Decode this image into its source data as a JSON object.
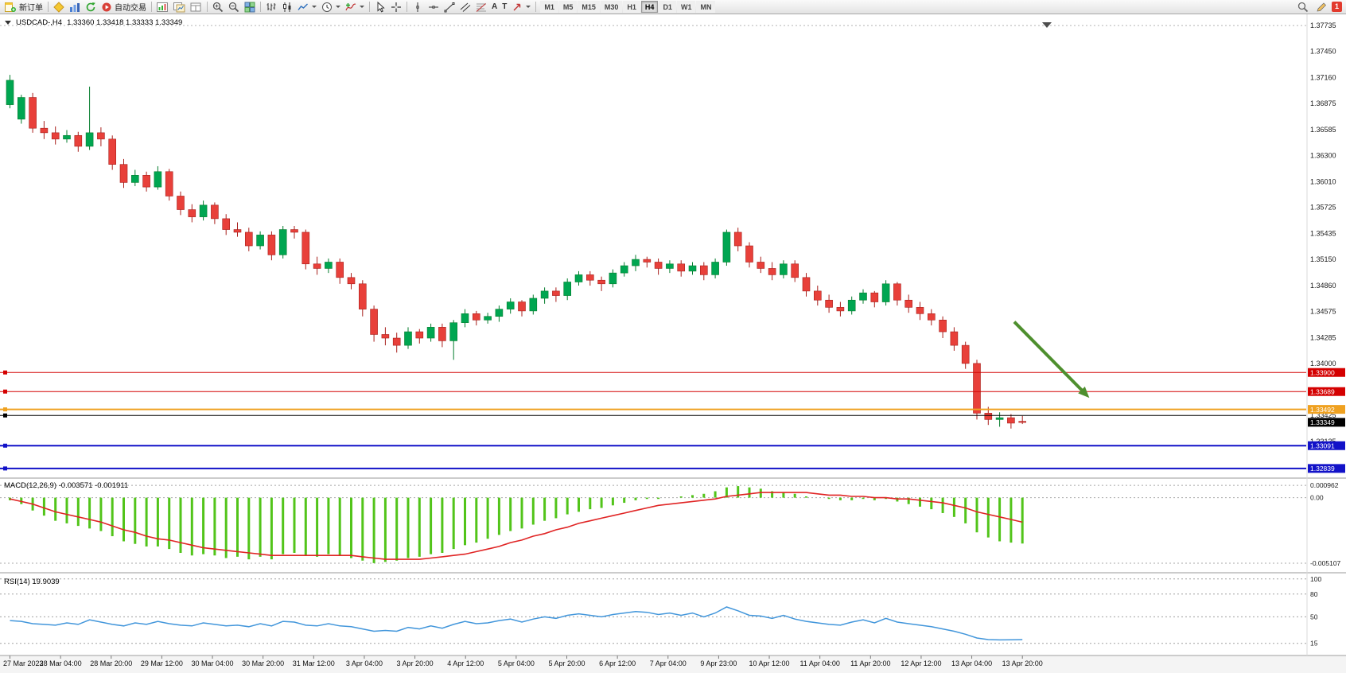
{
  "toolbar": {
    "new_order_label": "新订单",
    "autotrading_label": "自动交易",
    "text_tool_glyph": "A",
    "label_tool_glyph": "T",
    "timeframes": [
      "M1",
      "M5",
      "M15",
      "M30",
      "H1",
      "H4",
      "D1",
      "W1",
      "MN"
    ],
    "active_timeframe": "H4",
    "notification_count": "1"
  },
  "chart_header": {
    "symbol_period": "USDCAD-,H4",
    "ohlc": "1.33360 1.33418 1.33333 1.33349"
  },
  "indicator_labels": {
    "macd": "MACD(12,26,9) -0.003571 -0.001911",
    "rsi": "RSI(14) 19.9039"
  },
  "price_axis": {
    "ticks": [
      "1.37735",
      "1.37450",
      "1.37160",
      "1.36875",
      "1.36585",
      "1.36300",
      "1.36010",
      "1.35725",
      "1.35435",
      "1.35150",
      "1.34860",
      "1.34575",
      "1.34285",
      "1.34000",
      "1.33425",
      "1.33135",
      "1.32850"
    ]
  },
  "time_axis": [
    "27 Mar 2023",
    "28 Mar 04:00",
    "28 Mar 20:00",
    "29 Mar 12:00",
    "30 Mar 04:00",
    "30 Mar 20:00",
    "31 Mar 12:00",
    "3 Apr 04:00",
    "3 Apr 20:00",
    "4 Apr 12:00",
    "5 Apr 04:00",
    "5 Apr 20:00",
    "6 Apr 12:00",
    "7 Apr 04:00",
    "9 Apr 23:00",
    "10 Apr 12:00",
    "11 Apr 04:00",
    "11 Apr 20:00",
    "12 Apr 12:00",
    "13 Apr 04:00",
    "13 Apr 20:00"
  ],
  "colors": {
    "bull": "#00A651",
    "bull_border": "#067D2E",
    "bear": "#E8403A",
    "bear_border": "#A81F1B",
    "macd_histogram": "#52C41A",
    "signal_line": "#E02424",
    "rsi_line": "#4296DB",
    "hline_red": "#D40000",
    "hline_orange": "#EFA120",
    "hline_blue": "#1212C8",
    "hline_black": "#000000",
    "arrow": "#4E8F2E"
  },
  "chart_data": [
    {
      "type": "candlestick",
      "title": "USDCAD H4",
      "ylim": [
        1.3275,
        1.3778
      ],
      "ohlc": [
        [
          1.3686,
          1.3719,
          1.3682,
          1.3713
        ],
        [
          1.367,
          1.3697,
          1.3665,
          1.3694
        ],
        [
          1.3694,
          1.3699,
          1.3655,
          1.366
        ],
        [
          1.366,
          1.3668,
          1.3648,
          1.3655
        ],
        [
          1.3655,
          1.3662,
          1.3642,
          1.3648
        ],
        [
          1.3648,
          1.3658,
          1.3644,
          1.3652
        ],
        [
          1.3652,
          1.3656,
          1.3634,
          1.364
        ],
        [
          1.364,
          1.3706,
          1.3636,
          1.3655
        ],
        [
          1.3655,
          1.3661,
          1.364,
          1.3648
        ],
        [
          1.3648,
          1.3652,
          1.3614,
          1.362
        ],
        [
          1.362,
          1.3626,
          1.3594,
          1.36
        ],
        [
          1.36,
          1.3614,
          1.3596,
          1.3608
        ],
        [
          1.3608,
          1.3612,
          1.359,
          1.3595
        ],
        [
          1.3595,
          1.3618,
          1.3592,
          1.3612
        ],
        [
          1.3612,
          1.3615,
          1.358,
          1.3585
        ],
        [
          1.3585,
          1.359,
          1.3564,
          1.357
        ],
        [
          1.357,
          1.3576,
          1.3556,
          1.3562
        ],
        [
          1.3562,
          1.358,
          1.3558,
          1.3575
        ],
        [
          1.3575,
          1.3578,
          1.3554,
          1.356
        ],
        [
          1.356,
          1.3565,
          1.3542,
          1.3548
        ],
        [
          1.3548,
          1.3556,
          1.354,
          1.3545
        ],
        [
          1.3545,
          1.355,
          1.3524,
          1.353
        ],
        [
          1.353,
          1.3546,
          1.3526,
          1.3542
        ],
        [
          1.3542,
          1.3546,
          1.3514,
          1.352
        ],
        [
          1.352,
          1.3552,
          1.3516,
          1.3548
        ],
        [
          1.3548,
          1.3552,
          1.3538,
          1.3545
        ],
        [
          1.3545,
          1.3548,
          1.3504,
          1.351
        ],
        [
          1.351,
          1.3518,
          1.3498,
          1.3505
        ],
        [
          1.3505,
          1.3516,
          1.35,
          1.3512
        ],
        [
          1.3512,
          1.3516,
          1.3488,
          1.3495
        ],
        [
          1.3495,
          1.35,
          1.3482,
          1.3488
        ],
        [
          1.3488,
          1.3492,
          1.3452,
          1.346
        ],
        [
          1.346,
          1.3464,
          1.3424,
          1.3432
        ],
        [
          1.3432,
          1.344,
          1.342,
          1.3428
        ],
        [
          1.3428,
          1.3434,
          1.3412,
          1.342
        ],
        [
          1.342,
          1.344,
          1.3416,
          1.3435
        ],
        [
          1.3435,
          1.3438,
          1.3422,
          1.3428
        ],
        [
          1.3428,
          1.3444,
          1.3424,
          1.344
        ],
        [
          1.344,
          1.3444,
          1.3418,
          1.3425
        ],
        [
          1.3425,
          1.3448,
          1.3404,
          1.3445
        ],
        [
          1.3445,
          1.346,
          1.344,
          1.3455
        ],
        [
          1.3455,
          1.3458,
          1.3442,
          1.3448
        ],
        [
          1.3448,
          1.3456,
          1.3444,
          1.3452
        ],
        [
          1.3452,
          1.3464,
          1.3446,
          1.346
        ],
        [
          1.346,
          1.3472,
          1.3455,
          1.3468
        ],
        [
          1.3468,
          1.347,
          1.3452,
          1.3458
        ],
        [
          1.3458,
          1.3476,
          1.3454,
          1.3472
        ],
        [
          1.3472,
          1.3484,
          1.3466,
          1.348
        ],
        [
          1.348,
          1.3484,
          1.3468,
          1.3475
        ],
        [
          1.3475,
          1.3494,
          1.347,
          1.349
        ],
        [
          1.349,
          1.3502,
          1.3486,
          1.3498
        ],
        [
          1.3498,
          1.3502,
          1.3486,
          1.3492
        ],
        [
          1.3492,
          1.3496,
          1.348,
          1.3488
        ],
        [
          1.3488,
          1.3504,
          1.3484,
          1.35
        ],
        [
          1.35,
          1.3512,
          1.3496,
          1.3508
        ],
        [
          1.3508,
          1.352,
          1.3502,
          1.3515
        ],
        [
          1.3515,
          1.3518,
          1.3506,
          1.3512
        ],
        [
          1.3512,
          1.3516,
          1.3498,
          1.3505
        ],
        [
          1.3505,
          1.3514,
          1.35,
          1.351
        ],
        [
          1.351,
          1.3514,
          1.3496,
          1.3502
        ],
        [
          1.3502,
          1.3512,
          1.3498,
          1.3508
        ],
        [
          1.3508,
          1.3512,
          1.3492,
          1.3498
        ],
        [
          1.3498,
          1.3516,
          1.3494,
          1.3512
        ],
        [
          1.3512,
          1.3548,
          1.3508,
          1.3545
        ],
        [
          1.3545,
          1.355,
          1.3524,
          1.353
        ],
        [
          1.353,
          1.3534,
          1.3506,
          1.3512
        ],
        [
          1.3512,
          1.3518,
          1.35,
          1.3505
        ],
        [
          1.3505,
          1.3512,
          1.3492,
          1.3498
        ],
        [
          1.3498,
          1.3514,
          1.3494,
          1.351
        ],
        [
          1.351,
          1.3514,
          1.349,
          1.3495
        ],
        [
          1.3495,
          1.35,
          1.3474,
          1.348
        ],
        [
          1.348,
          1.3486,
          1.3464,
          1.347
        ],
        [
          1.347,
          1.3476,
          1.3456,
          1.3462
        ],
        [
          1.3462,
          1.3468,
          1.3452,
          1.3458
        ],
        [
          1.3458,
          1.3474,
          1.3454,
          1.347
        ],
        [
          1.347,
          1.3482,
          1.3466,
          1.3478
        ],
        [
          1.3478,
          1.348,
          1.3462,
          1.3468
        ],
        [
          1.3468,
          1.3492,
          1.3464,
          1.3488
        ],
        [
          1.3488,
          1.349,
          1.3464,
          1.347
        ],
        [
          1.347,
          1.3476,
          1.3456,
          1.3462
        ],
        [
          1.3462,
          1.3468,
          1.3448,
          1.3455
        ],
        [
          1.3455,
          1.346,
          1.3442,
          1.3448
        ],
        [
          1.3448,
          1.3452,
          1.3428,
          1.3435
        ],
        [
          1.3435,
          1.344,
          1.3414,
          1.342
        ],
        [
          1.342,
          1.3424,
          1.3394,
          1.34
        ],
        [
          1.34,
          1.3404,
          1.3338,
          1.3345
        ],
        [
          1.3345,
          1.3352,
          1.3332,
          1.3338
        ],
        [
          1.3338,
          1.3346,
          1.333,
          1.334
        ],
        [
          1.334,
          1.3344,
          1.3328,
          1.3334
        ],
        [
          1.3336,
          1.3342,
          1.3333,
          1.3335
        ]
      ],
      "hlines": [
        {
          "price": 1.339,
          "label": "1.33900",
          "color_key": "hline_red",
          "width": 1
        },
        {
          "price": 1.33689,
          "label": "1.33689",
          "color_key": "hline_red",
          "width": 1
        },
        {
          "price": 1.33492,
          "label": "1.33492",
          "color_key": "hline_orange",
          "width": 2
        },
        {
          "price": 1.33425,
          "label": "",
          "color_key": "hline_black",
          "width": 1
        },
        {
          "price": 1.33091,
          "label": "1.33091",
          "color_key": "hline_blue",
          "width": 2
        },
        {
          "price": 1.32839,
          "label": "1.32839",
          "color_key": "hline_blue",
          "width": 2
        }
      ],
      "current_price": {
        "value": 1.33349,
        "label": "1.33349"
      },
      "arrow": {
        "from_bar": 88.6,
        "from_price": 1.3446,
        "to_bar": 95.2,
        "to_price": 1.3362
      }
    },
    {
      "type": "bar",
      "name": "MACD(12,26,9)",
      "macd_value": -0.003571,
      "signal_value": -0.001911,
      "axis_labels": [
        "0.000962",
        "0.00",
        "-0.005107"
      ],
      "ylim": [
        -0.005107,
        0.000962
      ],
      "values": [
        -0.0002,
        -0.0005,
        -0.001,
        -0.0014,
        -0.0018,
        -0.002,
        -0.0022,
        -0.0024,
        -0.0026,
        -0.003,
        -0.0034,
        -0.0036,
        -0.0038,
        -0.0038,
        -0.004,
        -0.0043,
        -0.0045,
        -0.0044,
        -0.0045,
        -0.0047,
        -0.0046,
        -0.0048,
        -0.0046,
        -0.0048,
        -0.0044,
        -0.0043,
        -0.0045,
        -0.0046,
        -0.0044,
        -0.0045,
        -0.0047,
        -0.0049,
        -0.0051,
        -0.005,
        -0.0049,
        -0.0047,
        -0.0046,
        -0.0044,
        -0.0043,
        -0.004,
        -0.0037,
        -0.0035,
        -0.0032,
        -0.0029,
        -0.0026,
        -0.0024,
        -0.0021,
        -0.0018,
        -0.0016,
        -0.0013,
        -0.0011,
        -0.0009,
        -0.0008,
        -0.0006,
        -0.0004,
        -0.0002,
        -0.0001,
        -0.0001,
        0.0,
        0.0001,
        0.0002,
        0.0003,
        0.0005,
        0.0008,
        0.0009,
        0.0008,
        0.0007,
        0.0005,
        0.0004,
        0.0003,
        0.0001,
        0.0,
        -0.0001,
        -0.0002,
        -0.0002,
        -0.0001,
        -0.0002,
        -0.0001,
        -0.0003,
        -0.0005,
        -0.0007,
        -0.0009,
        -0.0012,
        -0.0015,
        -0.002,
        -0.0027,
        -0.0031,
        -0.0034,
        -0.0035,
        -0.003571
      ],
      "signal": [
        -0.0001,
        -0.0003,
        -0.0005,
        -0.0008,
        -0.0011,
        -0.0013,
        -0.0015,
        -0.0017,
        -0.0019,
        -0.0022,
        -0.0025,
        -0.0027,
        -0.003,
        -0.0032,
        -0.0033,
        -0.0035,
        -0.0037,
        -0.0039,
        -0.004,
        -0.0041,
        -0.0042,
        -0.0043,
        -0.0044,
        -0.0045,
        -0.0045,
        -0.0045,
        -0.0045,
        -0.0045,
        -0.0045,
        -0.0045,
        -0.0045,
        -0.0046,
        -0.0047,
        -0.0048,
        -0.0048,
        -0.0048,
        -0.0048,
        -0.0047,
        -0.0046,
        -0.0045,
        -0.0044,
        -0.0042,
        -0.004,
        -0.0038,
        -0.0035,
        -0.0033,
        -0.003,
        -0.0028,
        -0.0025,
        -0.0023,
        -0.002,
        -0.0018,
        -0.0016,
        -0.0014,
        -0.0012,
        -0.001,
        -0.0008,
        -0.0006,
        -0.0005,
        -0.0004,
        -0.0003,
        -0.0002,
        -0.0001,
        0.0001,
        0.0002,
        0.0003,
        0.0004,
        0.0004,
        0.0004,
        0.0004,
        0.0004,
        0.0003,
        0.0002,
        0.0002,
        0.0001,
        0.0001,
        0.0,
        0.0,
        -0.0001,
        -0.0001,
        -0.0002,
        -0.0003,
        -0.0004,
        -0.0006,
        -0.0008,
        -0.0011,
        -0.0013,
        -0.0015,
        -0.0017,
        -0.001911
      ]
    },
    {
      "type": "line",
      "name": "RSI(14)",
      "current": 19.9039,
      "levels": [
        100,
        80,
        50,
        15
      ],
      "axis_labels": [
        "100",
        "80",
        "50",
        "15"
      ],
      "ylim": [
        0,
        100
      ],
      "values": [
        45,
        44,
        41,
        40,
        39,
        42,
        40,
        46,
        43,
        40,
        38,
        42,
        40,
        44,
        41,
        39,
        38,
        42,
        40,
        38,
        39,
        37,
        41,
        38,
        44,
        43,
        39,
        38,
        41,
        38,
        37,
        34,
        31,
        32,
        31,
        36,
        34,
        38,
        35,
        40,
        44,
        41,
        42,
        45,
        47,
        43,
        47,
        50,
        48,
        52,
        54,
        52,
        50,
        53,
        55,
        57,
        56,
        53,
        55,
        52,
        55,
        50,
        55,
        63,
        58,
        52,
        51,
        48,
        52,
        47,
        44,
        42,
        40,
        39,
        43,
        46,
        42,
        48,
        43,
        41,
        39,
        37,
        34,
        31,
        27,
        22,
        20,
        19.5,
        19.7,
        19.9
      ]
    }
  ]
}
